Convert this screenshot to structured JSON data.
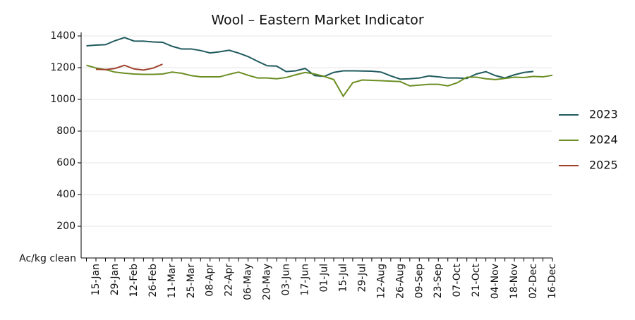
{
  "chart_data": {
    "type": "line",
    "title": "Wool – Eastern Market Indicator",
    "ylabel": "Ac/kg clean",
    "categories": [
      null,
      "15-Jan",
      null,
      "29-Jan",
      null,
      "12-Feb",
      null,
      "26-Feb",
      null,
      "11-Mar",
      null,
      "25-Mar",
      null,
      "08-Apr",
      null,
      "22-Apr",
      null,
      "06-May",
      null,
      "20-May",
      null,
      "03-Jun",
      null,
      "17-Jun",
      null,
      "01-Jul",
      null,
      "15-Jul",
      null,
      "29-Jul",
      null,
      "12-Aug",
      null,
      "26-Aug",
      null,
      "09-Sep",
      null,
      "23-Sep",
      null,
      "07-Oct",
      null,
      "21-Oct",
      null,
      "04-Nov",
      null,
      "18-Nov",
      null,
      "02-Dec",
      null,
      "16-Dec"
    ],
    "series": [
      {
        "name": "2023",
        "color": "#1f5a5e",
        "values": [
          1338,
          1342,
          1345,
          1370,
          1390,
          1368,
          1367,
          1362,
          1360,
          1335,
          1318,
          1318,
          1308,
          1293,
          1300,
          1310,
          1292,
          1270,
          1240,
          1212,
          1210,
          1175,
          1180,
          1195,
          1150,
          1145,
          1170,
          1180,
          1180,
          1179,
          1178,
          1172,
          1148,
          1128,
          1130,
          1135,
          1148,
          1142,
          1135,
          1135,
          1132,
          1160,
          1175,
          1150,
          1135,
          1155,
          1170,
          1176,
          null,
          null
        ]
      },
      {
        "name": "2024",
        "color": "#6b8e23",
        "values": [
          1215,
          1198,
          1188,
          1172,
          1165,
          1160,
          1158,
          1158,
          1160,
          1172,
          1165,
          1150,
          1142,
          1142,
          1142,
          1158,
          1172,
          1152,
          1135,
          1135,
          1130,
          1138,
          1155,
          1170,
          1160,
          1145,
          1125,
          1020,
          1105,
          1122,
          1120,
          1118,
          1115,
          1112,
          1085,
          1090,
          1095,
          1095,
          1085,
          1105,
          1140,
          1140,
          1130,
          1125,
          1132,
          1140,
          1138,
          1145,
          1142,
          1152
        ]
      },
      {
        "name": "2025",
        "color": "#a0432d",
        "values": [
          null,
          1190,
          1188,
          1195,
          1215,
          1192,
          1185,
          1197,
          1222,
          null,
          null,
          null,
          null,
          null,
          null,
          null,
          null,
          null,
          null,
          null,
          null,
          null,
          null,
          null,
          null,
          null,
          null,
          null,
          null,
          null,
          null,
          null,
          null,
          null,
          null,
          null,
          null,
          null,
          null,
          null,
          null,
          null,
          null,
          null,
          null,
          null,
          null,
          null,
          null,
          null
        ]
      }
    ],
    "ylim": [
      0,
      1400
    ],
    "yticks": [
      200,
      400,
      600,
      800,
      1000,
      1200,
      1400
    ],
    "grid": true,
    "legend": "right"
  }
}
